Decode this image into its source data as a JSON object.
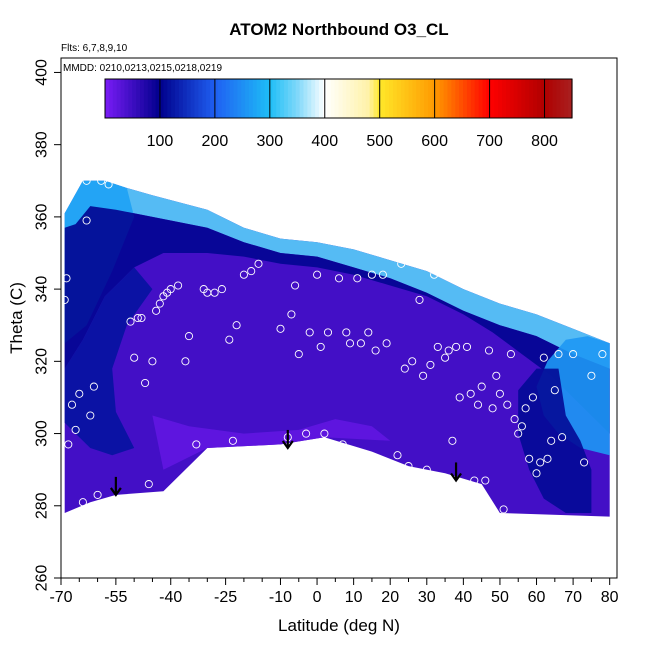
{
  "chart_data": {
    "type": "heatmap",
    "title": "ATOM2 Northbound O3_CL",
    "flights_note": "Flts: 6,7,8,9,10",
    "dates_note": "MMDD: 0210,0213,0215,0218,0219",
    "xlabel": "Latitude (deg N)",
    "ylabel": "Theta (C)",
    "xlim": [
      -70,
      82
    ],
    "ylim": [
      260,
      404
    ],
    "x_major_ticks": [
      -70,
      -55,
      -40,
      -25,
      -10,
      0,
      10,
      20,
      30,
      40,
      50,
      60,
      70,
      80
    ],
    "x_major_tick_labels": [
      "-70",
      "-55",
      "-40",
      "-25",
      "-10",
      "0",
      "10",
      "20",
      "30",
      "40",
      "50",
      "60",
      "70",
      "80"
    ],
    "x_minor_ticks": [
      -65,
      -60,
      -50,
      -45,
      -35,
      -30,
      -20,
      -15,
      -5,
      5,
      15,
      25,
      35,
      45,
      55,
      65,
      75
    ],
    "y_ticks": [
      260,
      280,
      300,
      320,
      340,
      360,
      380,
      400
    ],
    "y_tick_labels": [
      "260",
      "280",
      "300",
      "320",
      "340",
      "360",
      "380",
      "400"
    ],
    "colorbar": {
      "range": [
        0,
        850
      ],
      "ticks": [
        100,
        200,
        300,
        400,
        500,
        600,
        700,
        800
      ],
      "tick_labels": [
        "100",
        "200",
        "300",
        "400",
        "500",
        "600",
        "700",
        "800"
      ],
      "color_stops": [
        {
          "value": 0,
          "color": "#7a1cf6"
        },
        {
          "value": 100,
          "color": "#00008c"
        },
        {
          "value": 200,
          "color": "#1f5ff2"
        },
        {
          "value": 300,
          "color": "#1ebef6"
        },
        {
          "value": 350,
          "color": "#7fd8fa"
        },
        {
          "value": 400,
          "color": "#ffffff"
        },
        {
          "value": 480,
          "color": "#fff2a8"
        },
        {
          "value": 500,
          "color": "#ffe82a"
        },
        {
          "value": 600,
          "color": "#ff9a00"
        },
        {
          "value": 700,
          "color": "#ff0000"
        },
        {
          "value": 800,
          "color": "#b00000"
        },
        {
          "value": 850,
          "color": "#a82020"
        }
      ]
    },
    "upper_boundary": [
      [
        -69,
        361
      ],
      [
        -64,
        370
      ],
      [
        -62,
        370
      ],
      [
        -58,
        370
      ],
      [
        -52,
        368
      ],
      [
        -45,
        366
      ],
      [
        -30,
        362
      ],
      [
        -20,
        357
      ],
      [
        -10,
        354
      ],
      [
        0,
        353
      ],
      [
        10,
        351
      ],
      [
        20,
        348
      ],
      [
        30,
        345
      ],
      [
        40,
        340
      ],
      [
        50,
        336
      ],
      [
        60,
        333
      ],
      [
        70,
        329
      ],
      [
        80,
        325
      ]
    ],
    "lower_boundary": [
      [
        80,
        277
      ],
      [
        50,
        278
      ],
      [
        45,
        286
      ],
      [
        35,
        289
      ],
      [
        25,
        291
      ],
      [
        15,
        295
      ],
      [
        2,
        299
      ],
      [
        -10,
        297
      ],
      [
        -30,
        296
      ],
      [
        -42,
        284
      ],
      [
        -55,
        283
      ],
      [
        -62,
        281
      ],
      [
        -69,
        278
      ]
    ],
    "field_layers": [
      {
        "name": "stratospheric-cap",
        "value": 330,
        "region": [
          [
            -69,
            361
          ],
          [
            -64,
            370
          ],
          [
            -58,
            370
          ],
          [
            -52,
            368
          ],
          [
            -45,
            366
          ],
          [
            -30,
            362
          ],
          [
            -20,
            357
          ],
          [
            -10,
            354
          ],
          [
            0,
            353
          ],
          [
            10,
            351
          ],
          [
            20,
            348
          ],
          [
            30,
            345
          ],
          [
            40,
            340
          ],
          [
            50,
            336
          ],
          [
            60,
            333
          ],
          [
            70,
            329
          ],
          [
            80,
            325
          ],
          [
            80,
            318
          ],
          [
            70,
            322
          ],
          [
            60,
            327
          ],
          [
            50,
            330
          ],
          [
            40,
            334
          ],
          [
            30,
            339
          ],
          [
            20,
            343
          ],
          [
            10,
            346
          ],
          [
            0,
            349
          ],
          [
            -10,
            350
          ],
          [
            -20,
            353
          ],
          [
            -30,
            357
          ],
          [
            -45,
            360
          ],
          [
            -55,
            362
          ],
          [
            -62,
            363
          ],
          [
            -66,
            358
          ],
          [
            -69,
            355
          ]
        ]
      },
      {
        "name": "polar-blue-south",
        "value": 270,
        "region": [
          [
            -69,
            361
          ],
          [
            -64,
            370
          ],
          [
            -58,
            370
          ],
          [
            -52,
            368
          ],
          [
            -50,
            360
          ],
          [
            -56,
            345
          ],
          [
            -63,
            330
          ],
          [
            -69,
            325
          ]
        ]
      },
      {
        "name": "tropopause-band",
        "value": 105,
        "region": [
          [
            -69,
            357
          ],
          [
            -66,
            358
          ],
          [
            -62,
            363
          ],
          [
            -55,
            362
          ],
          [
            -45,
            360
          ],
          [
            -30,
            357
          ],
          [
            -20,
            353
          ],
          [
            -10,
            350
          ],
          [
            0,
            349
          ],
          [
            10,
            346
          ],
          [
            20,
            343
          ],
          [
            30,
            339
          ],
          [
            40,
            334
          ],
          [
            50,
            330
          ],
          [
            60,
            327
          ],
          [
            70,
            322
          ],
          [
            80,
            318
          ],
          [
            80,
            300
          ],
          [
            72,
            308
          ],
          [
            64,
            316
          ],
          [
            56,
            322
          ],
          [
            48,
            328
          ],
          [
            40,
            333
          ],
          [
            30,
            338
          ],
          [
            20,
            341
          ],
          [
            10,
            344
          ],
          [
            0,
            346
          ],
          [
            -10,
            347
          ],
          [
            -20,
            349
          ],
          [
            -30,
            350
          ],
          [
            -42,
            350
          ],
          [
            -50,
            346
          ],
          [
            -58,
            338
          ],
          [
            -64,
            326
          ],
          [
            -69,
            318
          ]
        ]
      },
      {
        "name": "northern-blue-tongue",
        "value": 260,
        "region": [
          [
            80,
            325
          ],
          [
            74,
            327
          ],
          [
            68,
            326
          ],
          [
            63,
            320
          ],
          [
            60,
            313
          ],
          [
            62,
            305
          ],
          [
            66,
            300
          ],
          [
            72,
            296
          ],
          [
            80,
            294
          ]
        ]
      },
      {
        "name": "northern-dark-band",
        "value": 110,
        "region": [
          [
            66,
            318
          ],
          [
            60,
            318
          ],
          [
            55,
            312
          ],
          [
            55,
            300
          ],
          [
            58,
            290
          ],
          [
            62,
            282
          ],
          [
            68,
            278
          ],
          [
            75,
            278
          ],
          [
            75,
            290
          ],
          [
            72,
            298
          ],
          [
            68,
            305
          ]
        ]
      },
      {
        "name": "southern-dark-ring",
        "value": 120,
        "region": [
          [
            -69,
            318
          ],
          [
            -64,
            326
          ],
          [
            -58,
            338
          ],
          [
            -50,
            346
          ],
          [
            -45,
            340
          ],
          [
            -52,
            330
          ],
          [
            -56,
            318
          ],
          [
            -55,
            306
          ],
          [
            -50,
            296
          ],
          [
            -56,
            294
          ],
          [
            -62,
            296
          ],
          [
            -66,
            300
          ],
          [
            -69,
            303
          ]
        ]
      },
      {
        "name": "lower-bright-violet",
        "value": 20,
        "region": [
          [
            -45,
            305
          ],
          [
            -35,
            302
          ],
          [
            -20,
            300
          ],
          [
            -5,
            301
          ],
          [
            5,
            304
          ],
          [
            15,
            302
          ],
          [
            20,
            298
          ],
          [
            2,
            299
          ],
          [
            -10,
            297
          ],
          [
            -30,
            296
          ],
          [
            -42,
            290
          ]
        ]
      }
    ],
    "observation_points": [
      [
        -69,
        337
      ],
      [
        -68.5,
        343
      ],
      [
        -68,
        297
      ],
      [
        -67,
        308
      ],
      [
        -66,
        301
      ],
      [
        -65,
        311
      ],
      [
        -64,
        281
      ],
      [
        -63,
        370
      ],
      [
        -63,
        359
      ],
      [
        -62,
        305
      ],
      [
        -61,
        313
      ],
      [
        -60,
        283
      ],
      [
        -59,
        370
      ],
      [
        -57,
        369
      ],
      [
        -51,
        331
      ],
      [
        -50,
        321
      ],
      [
        -49,
        332
      ],
      [
        -48,
        332
      ],
      [
        -47,
        314
      ],
      [
        -46,
        286
      ],
      [
        -45,
        320
      ],
      [
        -44,
        334
      ],
      [
        -43,
        336
      ],
      [
        -42,
        338
      ],
      [
        -41,
        339
      ],
      [
        -40,
        340
      ],
      [
        -38,
        341
      ],
      [
        -36,
        320
      ],
      [
        -35,
        327
      ],
      [
        -33,
        297
      ],
      [
        -31,
        340
      ],
      [
        -30,
        339
      ],
      [
        -28,
        339
      ],
      [
        -26,
        340
      ],
      [
        -24,
        326
      ],
      [
        -23,
        298
      ],
      [
        -22,
        330
      ],
      [
        -20,
        344
      ],
      [
        -18,
        345
      ],
      [
        -16,
        347
      ],
      [
        -10,
        329
      ],
      [
        -8,
        299
      ],
      [
        -7,
        333
      ],
      [
        -6,
        341
      ],
      [
        -5,
        322
      ],
      [
        -3,
        300
      ],
      [
        -2,
        328
      ],
      [
        0,
        344
      ],
      [
        1,
        324
      ],
      [
        2,
        300
      ],
      [
        3,
        328
      ],
      [
        6,
        343
      ],
      [
        7,
        297
      ],
      [
        8,
        328
      ],
      [
        9,
        325
      ],
      [
        11,
        343
      ],
      [
        12,
        325
      ],
      [
        13,
        294
      ],
      [
        14,
        328
      ],
      [
        15,
        344
      ],
      [
        16,
        323
      ],
      [
        18,
        344
      ],
      [
        19,
        325
      ],
      [
        22,
        294
      ],
      [
        23,
        347
      ],
      [
        24,
        318
      ],
      [
        25,
        291
      ],
      [
        26,
        320
      ],
      [
        28,
        337
      ],
      [
        29,
        316
      ],
      [
        30,
        290
      ],
      [
        31,
        319
      ],
      [
        32,
        344
      ],
      [
        33,
        324
      ],
      [
        35,
        321
      ],
      [
        36,
        323
      ],
      [
        37,
        298
      ],
      [
        38,
        324
      ],
      [
        39,
        310
      ],
      [
        40,
        286
      ],
      [
        41,
        324
      ],
      [
        42,
        311
      ],
      [
        43,
        287
      ],
      [
        44,
        308
      ],
      [
        45,
        313
      ],
      [
        46,
        287
      ],
      [
        47,
        323
      ],
      [
        48,
        307
      ],
      [
        49,
        316
      ],
      [
        50,
        311
      ],
      [
        51,
        279
      ],
      [
        52,
        308
      ],
      [
        53,
        322
      ],
      [
        54,
        304
      ],
      [
        55,
        300
      ],
      [
        56,
        302
      ],
      [
        57,
        307
      ],
      [
        58,
        293
      ],
      [
        59,
        310
      ],
      [
        60,
        289
      ],
      [
        61,
        292
      ],
      [
        62,
        321
      ],
      [
        63,
        293
      ],
      [
        64,
        298
      ],
      [
        65,
        312
      ],
      [
        66,
        322
      ],
      [
        67,
        299
      ],
      [
        70,
        322
      ],
      [
        73,
        292
      ],
      [
        75,
        316
      ],
      [
        78,
        322
      ]
    ],
    "annotations": [
      {
        "type": "arrow-down",
        "x": -55,
        "y_from": 288,
        "y_to": 283
      },
      {
        "type": "arrow-down",
        "x": -8,
        "y_from": 301,
        "y_to": 296
      },
      {
        "type": "arrow-down",
        "x": 38,
        "y_from": 292,
        "y_to": 287
      }
    ]
  }
}
